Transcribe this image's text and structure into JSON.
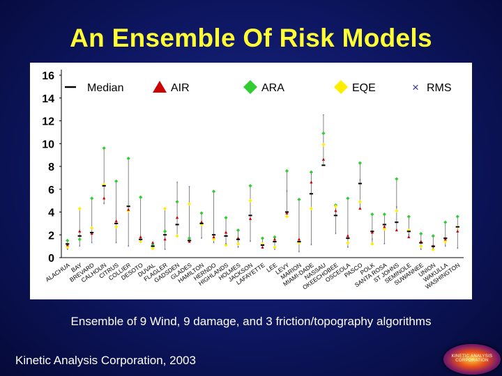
{
  "title": "An Ensemble Of Risk Models",
  "caption": "Ensemble of 9 Wind, 9 damage, and 3 friction/topography algorithms",
  "credit": "Kinetic Analysis Corporation, 2003",
  "logo_text": "KINETIC ANALYSIS CORPORATION",
  "colors": {
    "title": "#ffff33",
    "median": "#000000",
    "air": "#cc0000",
    "ara": "#33cc33",
    "eqe": "#ffee00",
    "rms": "#3333aa"
  },
  "chart_data": {
    "type": "scatter",
    "ylim": [
      0,
      16
    ],
    "yticks": [
      "0",
      "2",
      "4",
      "6",
      "8",
      "10",
      "12",
      "14",
      "16"
    ],
    "legend": [
      {
        "key": "median",
        "label": "Median",
        "marker": "line"
      },
      {
        "key": "air",
        "label": "AIR",
        "marker": "triangle"
      },
      {
        "key": "ara",
        "label": "ARA",
        "marker": "diamond"
      },
      {
        "key": "eqe",
        "label": "EQE",
        "marker": "diamond"
      },
      {
        "key": "rms",
        "label": "RMS",
        "marker": "x"
      }
    ],
    "categories": [
      "ALACHUA",
      "BAY",
      "BREVARD",
      "CALHOUN",
      "CITRUS",
      "COLLIER",
      "DESOTO",
      "DUVAL",
      "FLAGLER",
      "GADSDEN",
      "GLADES",
      "HAMILTON",
      "HERNDO",
      "HIGHLANDS",
      "HOLMES",
      "JACKSON",
      "LAFAYETTE",
      "LEE",
      "LEVY",
      "MARION",
      "MIAMI-DADE",
      "NASSAU",
      "OKEECHOBEE",
      "OSCEOLA",
      "PASCO",
      "POLK",
      "SANTA ROSA",
      "ST JOHNS",
      "SEMINOLE",
      "SUWANNEE",
      "UNION",
      "WAKULLA",
      "WASHINGTON"
    ],
    "series": [
      {
        "name": "ARA",
        "key": "ara",
        "values": [
          1.5,
          1.6,
          5.2,
          9.6,
          6.7,
          8.7,
          5.3,
          1.1,
          2.3,
          4.9,
          1.7,
          3.9,
          5.8,
          3.5,
          2.4,
          6.3,
          1.7,
          1.8,
          7.6,
          5.1,
          7.5,
          10.9,
          4.6,
          5.2,
          8.3,
          3.8,
          3.8,
          6.9,
          3.6,
          2.1,
          1.9,
          3.1,
          3.6
        ]
      },
      {
        "name": "EQE",
        "key": "eqe",
        "values": [
          0.9,
          4.3,
          2.6,
          6.4,
          2.7,
          4.1,
          1.4,
          0.8,
          4.3,
          1.9,
          4.7,
          2.9,
          1.6,
          1.1,
          1.2,
          5.0,
          1.2,
          0.9,
          3.6,
          1.3,
          4.3,
          9.9,
          4.5,
          1.3,
          4.9,
          1.2,
          2.5,
          4.1,
          2.4,
          1.0,
          0.7,
          1.4,
          2.7
        ]
      },
      {
        "name": "AIR",
        "key": "air",
        "values": [
          1.1,
          2.3,
          2.1,
          5.2,
          3.2,
          4.2,
          1.8,
          1.3,
          1.6,
          3.5,
          1.4,
          3.1,
          1.8,
          2.2,
          1.7,
          3.4,
          0.9,
          1.6,
          3.9,
          1.6,
          6.6,
          8.6,
          4.1,
          1.9,
          4.3,
          2.2,
          2.7,
          2.4,
          1.8,
          1.4,
          1.0,
          1.6,
          2.3
        ]
      },
      {
        "name": "Median",
        "key": "median",
        "values": [
          1.2,
          1.9,
          2.2,
          6.3,
          3.0,
          4.5,
          1.6,
          1.0,
          2.0,
          2.9,
          1.5,
          3.0,
          2.0,
          1.9,
          1.6,
          3.7,
          1.1,
          1.4,
          4.0,
          1.4,
          5.6,
          8.1,
          3.7,
          1.7,
          6.5,
          2.3,
          2.9,
          3.1,
          2.3,
          1.3,
          1.0,
          1.7,
          2.7
        ]
      },
      {
        "name": "RMS",
        "key": "rms",
        "values": [
          0.7,
          1.0,
          1.3,
          4.7,
          1.3,
          1.0,
          1.5,
          1.2,
          0.7,
          6.6,
          6.2,
          1.7,
          1.3,
          1.2,
          0.9,
          1.4,
          0.8,
          0.7,
          5.8,
          0.5,
          1.1,
          12.5,
          2.1,
          0.9,
          6.8,
          1.6,
          1.2,
          4.4,
          2.0,
          0.7,
          0.8,
          1.0,
          0.8
        ]
      }
    ]
  }
}
